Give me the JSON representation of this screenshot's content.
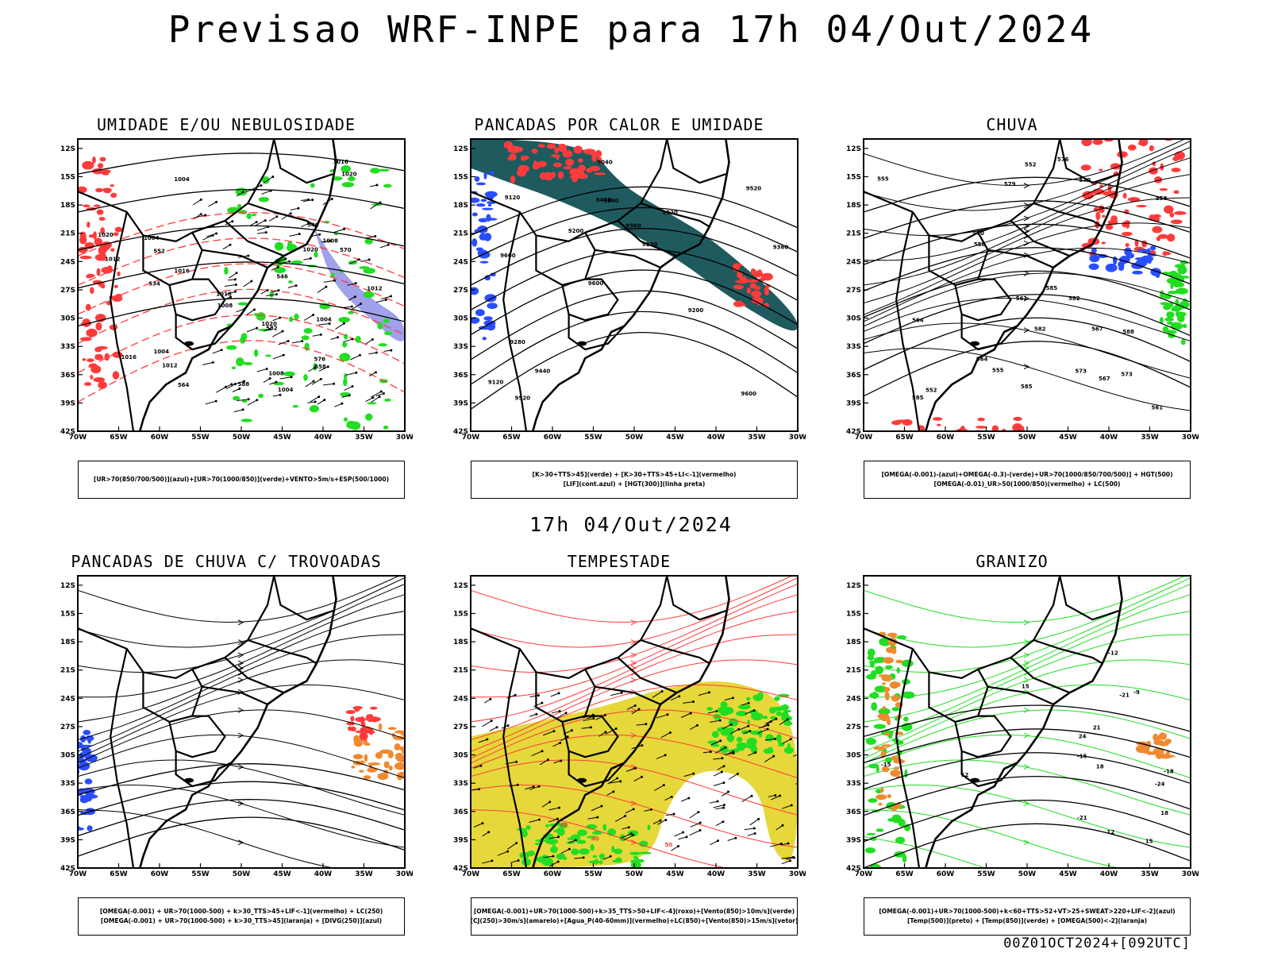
{
  "main_title": "Previsao WRF-INPE  para 17h 04/Out/2024",
  "mid_title": "17h 04/Out/2024",
  "footer": "00Z01OCT2024+[092UTC]",
  "axes": {
    "lat_labels": [
      "12S",
      "15S",
      "18S",
      "21S",
      "24S",
      "27S",
      "30S",
      "33S",
      "36S",
      "39S",
      "42S"
    ],
    "lon_labels": [
      "70W",
      "65W",
      "60W",
      "55W",
      "50W",
      "45W",
      "40W",
      "35W",
      "30W"
    ]
  },
  "colors": {
    "red": "#ff3b3b",
    "green": "#22dd22",
    "blue": "#2a4dff",
    "lavender": "#8f8fe8",
    "teal": "#1f5a5e",
    "orange": "#f08a30",
    "yellow": "#e6d83a"
  },
  "panels": [
    {
      "title": "UMIDADE E/OU NEBULOSIDADE",
      "legend": [
        "[UR>70(850/700/500)](azul)+[UR>70(1000/850)](verde)+VENTO>5m/s+ESP(500/1000)"
      ],
      "labels": [
        "1004",
        "1004",
        "1004",
        "1004",
        "1008",
        "1008",
        "1012",
        "1016",
        "1008",
        "1012",
        "1016",
        "1020",
        "1016",
        "1020",
        "1020",
        "1016",
        "1012",
        "1020",
        "1004",
        "570",
        "576",
        "582",
        "564",
        "558",
        "546",
        "540",
        "534",
        "552",
        "588"
      ]
    },
    {
      "title": "PANCADAS POR CALOR E UMIDADE",
      "legend": [
        "[K>30+TTS>45](verde) + [K>30+TTS>45+LI<-1](vermelho)",
        "[LIF](cont.azul) + [HGT(300)](linha preta)"
      ],
      "labels": [
        "9600",
        "9600",
        "9520",
        "9600",
        "9520",
        "9520",
        "9440",
        "9360",
        "9280",
        "9200",
        "9120",
        "9440",
        "9360",
        "9280",
        "9200",
        "9120",
        "9040",
        "9360"
      ]
    },
    {
      "title": "CHUVA",
      "legend": [
        "[OMEGA(-0.001)-(azul)+OMEGA(-0.3)-(verde)+UR>70(1000/850/700/500)] + HGT(500)",
        "[OMEGA(-0.01)_UR>50(1000/850)(vermelho) + LC(500)"
      ],
      "labels": [
        "585",
        "588",
        "585",
        "582",
        "579",
        "576",
        "573",
        "570",
        "567",
        "564",
        "561",
        "558",
        "555",
        "552",
        "573",
        "570",
        "567",
        "564",
        "561",
        "558",
        "555",
        "552",
        "585",
        "582"
      ]
    },
    {
      "title": "PANCADAS DE CHUVA C/ TROVOADAS",
      "legend": [
        "[OMEGA(-0.001) + UR>70(1000-500) + k>30_TTS>45+LIF<-1](vermelho) + LC(250)",
        "[OMEGA(-0.001) + UR>70(1000-500) + k>30_TTS>45](laranja) + [DIVG(250)](azul)"
      ],
      "labels": []
    },
    {
      "title": "TEMPESTADE",
      "legend": [
        "[OMEGA(-0.001)+UR>70(1000-500)+k>35_TTS>50+LIF<-4](roxo)+[Vento(850)>10m/s](verde)",
        "[CJ(250)>30m/s](amarelo)+[Agua_P(40-60mm)](vermelho)+LC(850)+[Vento(850)>15m/s](vetor)"
      ],
      "labels": [
        "40",
        "50",
        "40"
      ]
    },
    {
      "title": "GRANIZO",
      "legend": [
        "[OMEGA(-0.001)+UR>70(1000-500)+k<60+TTS>52+VT>25+SWEAT>220+LIF<-2](azul)",
        "[Temp(500)](preto) + [Temp(850)](verde) + [OMEGA(500)<-2](laranja)"
      ],
      "labels": [
        "-15",
        "-18",
        "-21",
        "-24",
        "-21",
        "-12",
        "-9",
        "15",
        "18",
        "12",
        "21",
        "24",
        "-15",
        "18",
        "12",
        "15"
      ]
    }
  ]
}
